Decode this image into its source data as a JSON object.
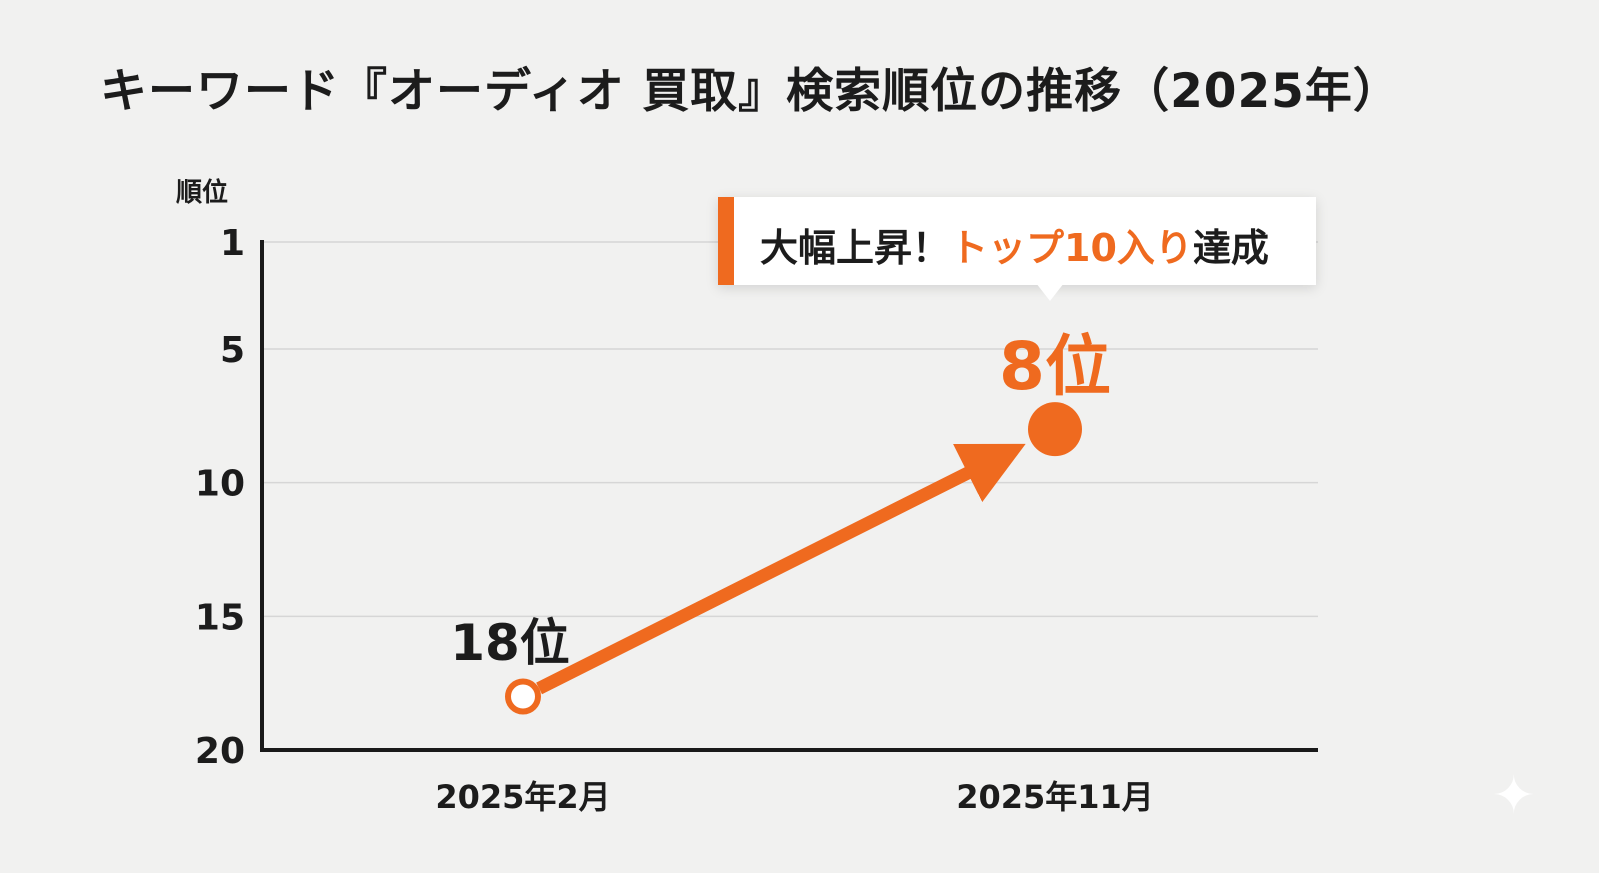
{
  "title": "キーワード『オーディオ 買取』検索順位の推移（2025年）",
  "colors": {
    "accent": "#ef6a1f",
    "text": "#1c1c1c",
    "grid": "#d6d6d6",
    "background": "#f1f1f0"
  },
  "callout": {
    "prefix": "大幅上昇！",
    "highlight": "トップ10入り",
    "suffix": "達成"
  },
  "chart_data": {
    "type": "line",
    "ylabel": "順位",
    "xlabel": "",
    "y_inverted": true,
    "ylim": [
      1,
      20
    ],
    "yticks": [
      "1",
      "5",
      "10",
      "15",
      "20"
    ],
    "grid": true,
    "categories": [
      "2025年2月",
      "2025年11月"
    ],
    "series": [
      {
        "values": [
          18,
          8
        ]
      }
    ],
    "data_labels": [
      "18位",
      "8位"
    ]
  },
  "sparkle_icon": "sparkle-icon"
}
